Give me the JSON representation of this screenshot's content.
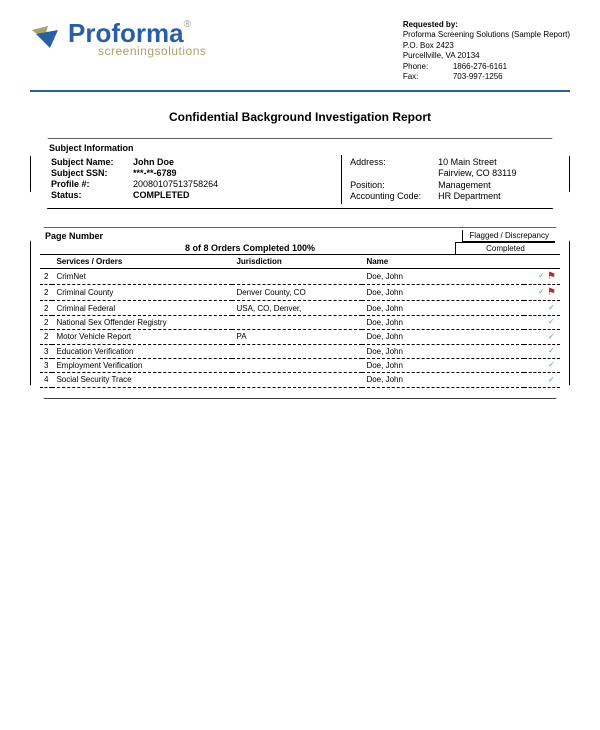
{
  "logo": {
    "main": "Proforma",
    "sub": "screeningsolutions"
  },
  "requested_by": {
    "label": "Requested by:",
    "name": "Proforma Screening Solutions (Sample Report)",
    "addr1": "P.O. Box 2423",
    "addr2": "Purcellville, VA 20134",
    "phone_label": "Phone:",
    "phone": "1866-276-6161",
    "fax_label": "Fax:",
    "fax": "703-997-1256"
  },
  "title": "Confidential Background Investigation Report",
  "subject": {
    "heading": "Subject Information",
    "left": [
      {
        "label": "Subject Name:",
        "value": "John Doe",
        "bold": true
      },
      {
        "label": "Subject SSN:",
        "value": "***-**-6789",
        "bold": true
      },
      {
        "label": "Profile #:",
        "value": "20080107513758264",
        "bold": false
      },
      {
        "label": "Status:",
        "value": "COMPLETED",
        "bold": true
      }
    ],
    "right": [
      {
        "label": "Address:",
        "value": "10 Main Street"
      },
      {
        "label": "",
        "value": "Fairview, CO 83119"
      },
      {
        "label": "",
        "value": ""
      },
      {
        "label": "Position:",
        "value": "Management"
      },
      {
        "label": "Accounting Code:",
        "value": "HR Department"
      }
    ]
  },
  "orders": {
    "page_number_label": "Page Number",
    "flag_head": "Flagged / Discrepancy",
    "summary": "8 of 8 Orders Completed 100%",
    "completed_label": "Completed",
    "columns": [
      "",
      "Services / Orders",
      "Jurisdiction",
      "Name",
      ""
    ],
    "rows": [
      {
        "n": "2",
        "service": "CrimNet",
        "jurisdiction": "",
        "name": "Doe, John",
        "completed": true,
        "flagged": true
      },
      {
        "n": "2",
        "service": "Criminal County",
        "jurisdiction": "Denver County, CO",
        "name": "Doe, John",
        "completed": true,
        "flagged": true
      },
      {
        "n": "2",
        "service": "Criminal Federal",
        "jurisdiction": "USA, CO, Denver,",
        "name": "Doe, John",
        "completed": true,
        "flagged": false
      },
      {
        "n": "2",
        "service": "National Sex Offender Registry",
        "jurisdiction": "",
        "name": "Doe, John",
        "completed": true,
        "flagged": false
      },
      {
        "n": "2",
        "service": "Motor Vehicle Report",
        "jurisdiction": "PA",
        "name": "Doe, John",
        "completed": true,
        "flagged": false
      },
      {
        "n": "3",
        "service": "Education Verification",
        "jurisdiction": "",
        "name": "Doe, John",
        "completed": true,
        "flagged": false
      },
      {
        "n": "3",
        "service": "Employment Verification",
        "jurisdiction": "",
        "name": "Doe, John",
        "completed": true,
        "flagged": false
      },
      {
        "n": "4",
        "service": "Social Security Trace",
        "jurisdiction": "",
        "name": "Doe, John",
        "completed": true,
        "flagged": false
      }
    ]
  },
  "colors": {
    "brand_blue": "#2b5fa3",
    "brand_olive": "#a7a36a",
    "check_green": "#4caf50",
    "flag_red": "#c62828"
  }
}
